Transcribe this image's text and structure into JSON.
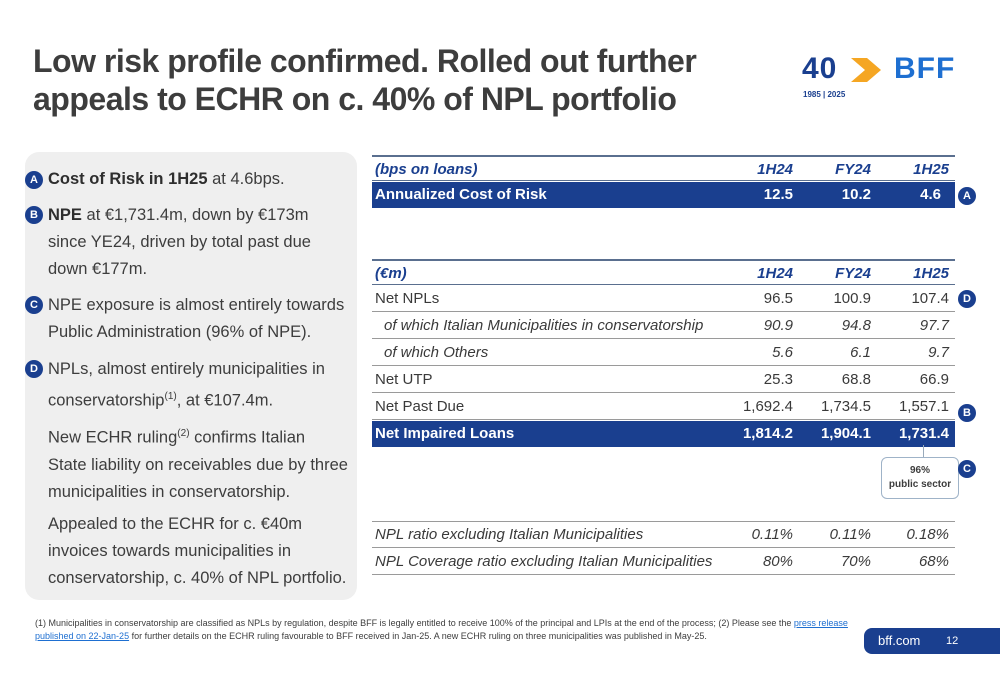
{
  "title_line1": "Low risk profile confirmed. Rolled out further",
  "title_line2": "appeals to ECHR on c. 40% of NPL portfolio",
  "logo": {
    "number": "40",
    "brand": "BFF",
    "years": "1985 | 2025",
    "colors": {
      "navy": "#1a3f8f",
      "orange": "#f5a623",
      "blue": "#1e6fd1"
    }
  },
  "left_panel": {
    "a": {
      "badge": "A",
      "bold": "Cost of Risk in 1H25",
      "text": " at 4.6bps."
    },
    "b": {
      "badge": "B",
      "bold": "NPE",
      "text": " at €1,731.4m, down by €173m since YE24, driven by total past due down €177m."
    },
    "c": {
      "badge": "C",
      "text": "NPE exposure is almost entirely towards Public Administration (96% of NPE)."
    },
    "d": {
      "badge": "D",
      "text_pre": "NPLs, almost entirely municipalities in conservatorship",
      "sup": "(1)",
      "text_post": ", at €107.4m."
    },
    "p1": {
      "pre": "New ECHR ruling",
      "sup": "(2)",
      "post": " confirms Italian State liability on receivables due by three municipalities in conservatorship."
    },
    "p2": "Appealed to the ECHR for c. €40m invoices towards municipalities in conservatorship, c. 40% of NPL portfolio."
  },
  "cor_table": {
    "header": {
      "label": "(bps on loans)",
      "c1": "1H24",
      "c2": "FY24",
      "c3": "1H25"
    },
    "row": {
      "label": "Annualized Cost of Risk",
      "c1": "12.5",
      "c2": "10.2",
      "c3": "4.6",
      "badge": "A"
    }
  },
  "npl_table": {
    "header": {
      "label": "(€m)",
      "c1": "1H24",
      "c2": "FY24",
      "c3": "1H25"
    },
    "rows": [
      {
        "label": "Net NPLs",
        "c1": "96.5",
        "c2": "100.9",
        "c3": "107.4",
        "badge": "D"
      },
      {
        "label": "of which Italian Municipalities in conservatorship",
        "c1": "90.9",
        "c2": "94.8",
        "c3": "97.7"
      },
      {
        "label": "of which Others",
        "c1": "5.6",
        "c2": "6.1",
        "c3": "9.7"
      },
      {
        "label": "Net UTP",
        "c1": "25.3",
        "c2": "68.8",
        "c3": "66.9"
      },
      {
        "label": "Net Past Due",
        "c1": "1,692.4",
        "c2": "1,734.5",
        "c3": "1,557.1",
        "badge": "B"
      },
      {
        "label": "Net Impaired Loans",
        "c1": "1,814.2",
        "c2": "1,904.1",
        "c3": "1,731.4"
      }
    ]
  },
  "callout": {
    "line1": "96%",
    "line2": "public sector",
    "badge": "C"
  },
  "ratio_table": {
    "rows": [
      {
        "label": "NPL ratio excluding Italian Municipalities",
        "c1": "0.11%",
        "c2": "0.11%",
        "c3": "0.18%"
      },
      {
        "label": "NPL Coverage ratio excluding Italian Municipalities",
        "c1": "80%",
        "c2": "70%",
        "c3": "68%"
      }
    ]
  },
  "footnote": {
    "part1": "(1) Municipalities in conservatorship are classified as NPLs by regulation, despite BFF is legally entitled to receive 100% of the principal and LPIs at the end of the process; (2) Please see the ",
    "link": "press release published on 22-Jan-25",
    "part2": " for further details on the ECHR ruling favourable to BFF received in Jan-25. A new ECHR ruling on three municipalities was published in May-25."
  },
  "footer": {
    "site": "bff.com",
    "page": "12"
  }
}
